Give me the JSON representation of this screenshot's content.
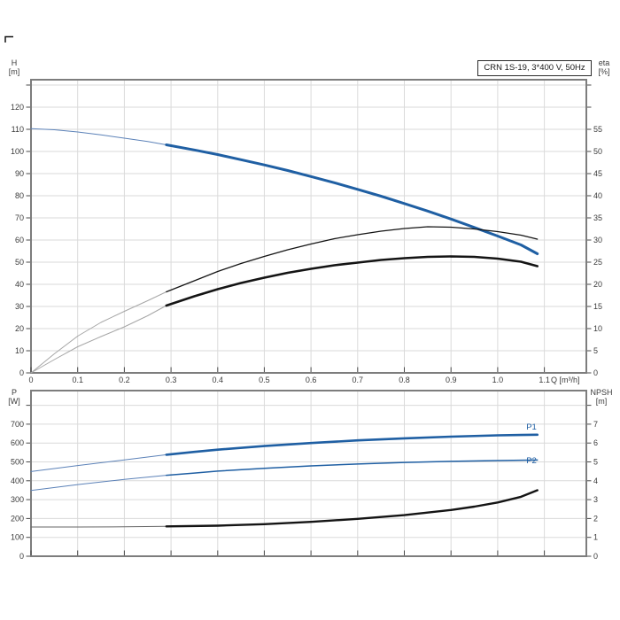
{
  "title_box": {
    "text": "CRN 1S-19, 3*400 V, 50Hz"
  },
  "colors": {
    "curve_blue": "#1f5fa3",
    "curve_blue_thin": "#5c82b8",
    "curve_black": "#141414",
    "curve_gray_thin": "#a6a6a6",
    "curve_gray_dark": "#666666",
    "grid": "#dadada",
    "border": "#7d7d7d",
    "tick": "#4a4a4a",
    "text": "#3b3b3b",
    "label_blue": "#1f5fa3"
  },
  "chart_data": [
    {
      "type": "line",
      "title": "CRN 1S-19, 3*400 V, 50Hz",
      "x_axis": {
        "label": "Q [m³/h]",
        "range": [
          0,
          1.19
        ],
        "tick_values": [
          0,
          0.1,
          0.2,
          0.3,
          0.4,
          0.5,
          0.6,
          0.7,
          0.8,
          0.9,
          1.0,
          1.1
        ],
        "tick_labels": [
          "0",
          "0.1",
          "0.2",
          "0.3",
          "0.4",
          "0.5",
          "0.6",
          "0.7",
          "0.8",
          "0.9",
          "1.0",
          "1.1"
        ]
      },
      "left_axis": {
        "label": "H\n[m]",
        "range": [
          0,
          132.4
        ],
        "tick_values": [
          0,
          10,
          20,
          30,
          40,
          50,
          60,
          70,
          80,
          90,
          100,
          110,
          120,
          130
        ],
        "tick_labels": [
          "0",
          "10",
          "20",
          "30",
          "40",
          "50",
          "60",
          "70",
          "80",
          "90",
          "100",
          "110",
          "120",
          ""
        ]
      },
      "right_axis": {
        "label": "eta\n[%]",
        "range": [
          0,
          66.2
        ],
        "tick_values": [
          0,
          5,
          10,
          15,
          20,
          25,
          30,
          35,
          40,
          45,
          50,
          55,
          60,
          65
        ],
        "tick_labels": [
          "0",
          "5",
          "10",
          "15",
          "20",
          "25",
          "30",
          "35",
          "40",
          "45",
          "50",
          "55",
          "",
          ""
        ]
      },
      "series": [
        {
          "name": "H",
          "axis": "left",
          "split_q": 0.29,
          "thin_color": "curve_blue_thin",
          "thin_width": 1,
          "thick_color": "curve_blue",
          "thick_width": 3,
          "points": [
            [
              0,
              110.3
            ],
            [
              0.05,
              109.8
            ],
            [
              0.1,
              108.8
            ],
            [
              0.15,
              107.5
            ],
            [
              0.2,
              106
            ],
            [
              0.25,
              104.5
            ],
            [
              0.29,
              103
            ],
            [
              0.35,
              100.7
            ],
            [
              0.4,
              98.6
            ],
            [
              0.45,
              96.3
            ],
            [
              0.5,
              93.9
            ],
            [
              0.55,
              91.4
            ],
            [
              0.6,
              88.7
            ],
            [
              0.65,
              85.9
            ],
            [
              0.7,
              82.9
            ],
            [
              0.75,
              79.8
            ],
            [
              0.8,
              76.5
            ],
            [
              0.85,
              73.1
            ],
            [
              0.9,
              69.5
            ],
            [
              0.95,
              65.7
            ],
            [
              1.0,
              61.8
            ],
            [
              1.05,
              57.8
            ],
            [
              1.085,
              53.8
            ]
          ]
        },
        {
          "name": "eta-pump",
          "axis": "right",
          "split_q": 0.29,
          "thin_color": "curve_gray_thin",
          "thin_width": 1,
          "thick_color": "curve_black",
          "thick_width": 1.3,
          "points": [
            [
              0,
              0
            ],
            [
              0.05,
              4.3
            ],
            [
              0.1,
              8.3
            ],
            [
              0.15,
              11.4
            ],
            [
              0.2,
              13.9
            ],
            [
              0.25,
              16.3
            ],
            [
              0.29,
              18.3
            ],
            [
              0.35,
              20.8
            ],
            [
              0.4,
              22.9
            ],
            [
              0.45,
              24.7
            ],
            [
              0.5,
              26.3
            ],
            [
              0.55,
              27.8
            ],
            [
              0.6,
              29.1
            ],
            [
              0.65,
              30.3
            ],
            [
              0.7,
              31.2
            ],
            [
              0.75,
              32
            ],
            [
              0.8,
              32.6
            ],
            [
              0.85,
              33
            ],
            [
              0.9,
              32.9
            ],
            [
              0.95,
              32.5
            ],
            [
              1.0,
              31.9
            ],
            [
              1.05,
              31.1
            ],
            [
              1.085,
              30.2
            ]
          ]
        },
        {
          "name": "eta-pump-motor",
          "axis": "right",
          "split_q": 0.29,
          "thin_color": "curve_gray_thin",
          "thin_width": 1,
          "thick_color": "curve_black",
          "thick_width": 2.6,
          "points": [
            [
              0,
              0
            ],
            [
              0.05,
              3
            ],
            [
              0.1,
              5.9
            ],
            [
              0.15,
              8.2
            ],
            [
              0.2,
              10.4
            ],
            [
              0.25,
              12.9
            ],
            [
              0.29,
              15.2
            ],
            [
              0.35,
              17.3
            ],
            [
              0.4,
              18.9
            ],
            [
              0.45,
              20.3
            ],
            [
              0.5,
              21.5
            ],
            [
              0.55,
              22.6
            ],
            [
              0.6,
              23.5
            ],
            [
              0.65,
              24.3
            ],
            [
              0.7,
              24.9
            ],
            [
              0.75,
              25.5
            ],
            [
              0.8,
              25.9
            ],
            [
              0.85,
              26.2
            ],
            [
              0.9,
              26.3
            ],
            [
              0.95,
              26.2
            ],
            [
              1.0,
              25.8
            ],
            [
              1.05,
              25.1
            ],
            [
              1.085,
              24.1
            ]
          ]
        }
      ]
    },
    {
      "type": "line",
      "x_axis": {
        "label": "",
        "range": [
          0,
          1.19
        ],
        "tick_values": [
          0,
          0.1,
          0.2,
          0.3,
          0.4,
          0.5,
          0.6,
          0.7,
          0.8,
          0.9,
          1.0,
          1.1
        ],
        "tick_labels": [
          "",
          "",
          "",
          "",
          "",
          "",
          "",
          "",
          "",
          "",
          "",
          ""
        ]
      },
      "left_axis": {
        "label": "P\n[W]",
        "range": [
          0,
          878
        ],
        "tick_values": [
          0,
          100,
          200,
          300,
          400,
          500,
          600,
          700,
          800
        ],
        "tick_labels": [
          "0",
          "100",
          "200",
          "300",
          "400",
          "500",
          "600",
          "700",
          ""
        ]
      },
      "right_axis": {
        "label": "NPSH\n[m]",
        "range": [
          0,
          8.78
        ],
        "tick_values": [
          0,
          1,
          2,
          3,
          4,
          5,
          6,
          7,
          8
        ],
        "tick_labels": [
          "0",
          "1",
          "2",
          "3",
          "4",
          "5",
          "6",
          "7",
          ""
        ]
      },
      "series": [
        {
          "name": "P1",
          "axis": "left",
          "split_q": 0.29,
          "thin_color": "curve_blue_thin",
          "thin_width": 1,
          "thick_color": "curve_blue",
          "thick_width": 2.6,
          "points": [
            [
              0,
              449
            ],
            [
              0.1,
              481
            ],
            [
              0.2,
              511
            ],
            [
              0.29,
              538
            ],
            [
              0.35,
              553
            ],
            [
              0.4,
              565
            ],
            [
              0.5,
              584
            ],
            [
              0.6,
              600
            ],
            [
              0.7,
              614
            ],
            [
              0.8,
              625
            ],
            [
              0.9,
              634
            ],
            [
              1.0,
              641
            ],
            [
              1.05,
              643
            ],
            [
              1.085,
              644
            ]
          ]
        },
        {
          "name": "P2",
          "axis": "left",
          "split_q": 0.29,
          "thin_color": "curve_blue_thin",
          "thin_width": 1,
          "thick_color": "curve_blue",
          "thick_width": 1.5,
          "points": [
            [
              0,
              349
            ],
            [
              0.1,
              380
            ],
            [
              0.2,
              407
            ],
            [
              0.29,
              429
            ],
            [
              0.35,
              441
            ],
            [
              0.4,
              451
            ],
            [
              0.5,
              466
            ],
            [
              0.6,
              479
            ],
            [
              0.7,
              489
            ],
            [
              0.8,
              497
            ],
            [
              0.9,
              503
            ],
            [
              1.0,
              507
            ],
            [
              1.05,
              509
            ],
            [
              1.085,
              510
            ]
          ]
        },
        {
          "name": "NPSH",
          "axis": "right",
          "split_q": 0.29,
          "thin_color": "curve_gray_dark",
          "thin_width": 1,
          "thick_color": "curve_black",
          "thick_width": 2.4,
          "points": [
            [
              0,
              1.55
            ],
            [
              0.1,
              1.55
            ],
            [
              0.2,
              1.56
            ],
            [
              0.29,
              1.58
            ],
            [
              0.4,
              1.62
            ],
            [
              0.5,
              1.7
            ],
            [
              0.6,
              1.82
            ],
            [
              0.7,
              1.98
            ],
            [
              0.8,
              2.18
            ],
            [
              0.9,
              2.45
            ],
            [
              0.95,
              2.63
            ],
            [
              1.0,
              2.85
            ],
            [
              1.05,
              3.15
            ],
            [
              1.085,
              3.5
            ]
          ]
        }
      ],
      "annotations": [
        {
          "text": "P1"
        },
        {
          "text": "P2"
        }
      ]
    }
  ],
  "axis_titles": {
    "h": "H\n[m]",
    "eta": "eta\n[%]",
    "p": "P\n[W]",
    "npsh": "NPSH\n[m]",
    "q": "Q [m³/h]"
  }
}
